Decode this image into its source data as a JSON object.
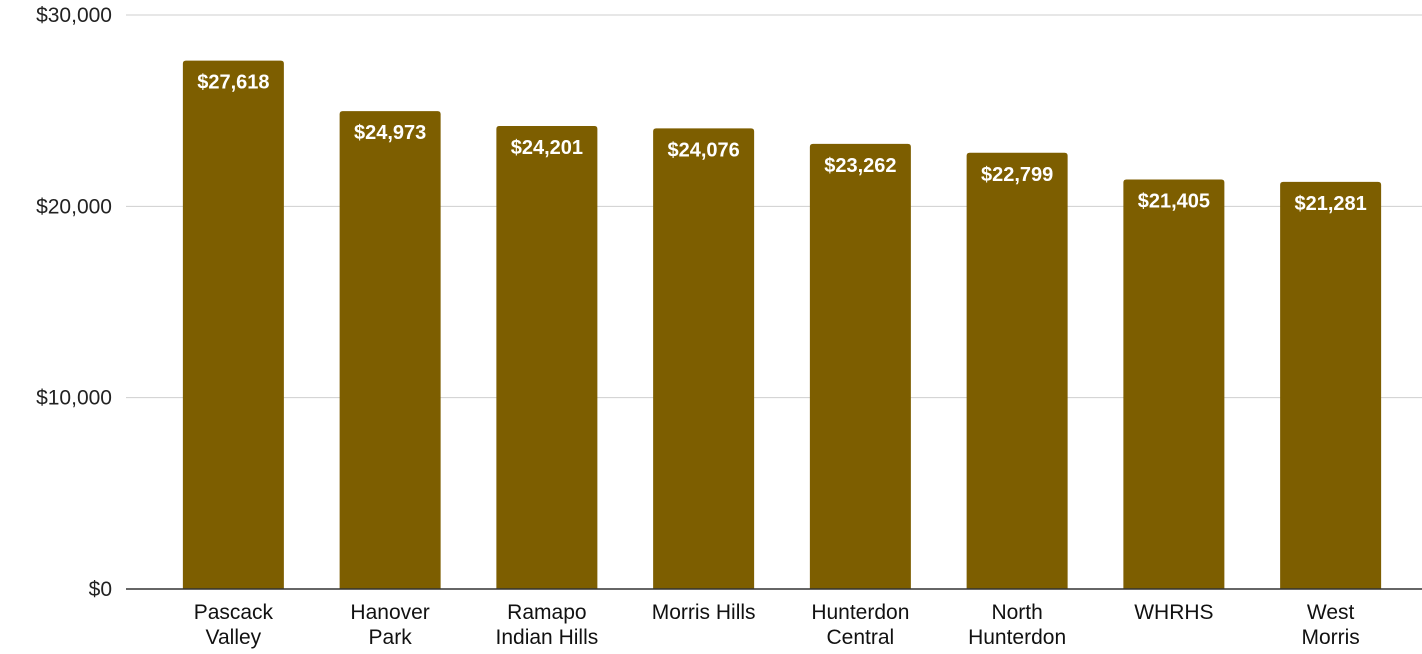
{
  "chart_data": {
    "type": "bar",
    "title": "",
    "xlabel": "",
    "ylabel": "",
    "categories": [
      [
        "Pascack",
        "Valley"
      ],
      [
        "Hanover",
        "Park"
      ],
      [
        "Ramapo",
        "Indian Hills"
      ],
      [
        "Morris Hills"
      ],
      [
        "Hunterdon",
        "Central"
      ],
      [
        "North",
        "Hunterdon"
      ],
      [
        "WHRHS"
      ],
      [
        "West",
        "Morris"
      ]
    ],
    "values": [
      27618,
      24973,
      24201,
      24076,
      23262,
      22799,
      21405,
      21281
    ],
    "data_labels": [
      "$27,618",
      "$24,973",
      "$24,201",
      "$24,076",
      "$23,262",
      "$22,799",
      "$21,405",
      "$21,281"
    ],
    "ylim": [
      0,
      30000
    ],
    "yticks": [
      0,
      10000,
      20000,
      30000
    ],
    "ytick_labels": [
      "$0",
      "$10,000",
      "$20,000",
      "$30,000"
    ],
    "grid": true,
    "legend": "none",
    "bar_color": "#7d5e00",
    "label_color": "#ffffff"
  }
}
